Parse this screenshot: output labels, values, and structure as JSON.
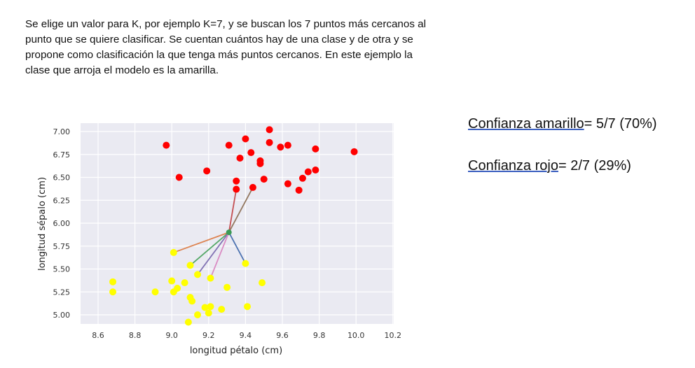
{
  "paragraph": {
    "lines": [
      "Se elige un valor para K, por ejemplo K=7, y se buscan los 7 puntos más cercanos al",
      "punto que se quiere clasificar. Se cuentan cuántos hay de una clase y de otra y se",
      "propone como clasificación la que tenga más puntos cercanos. En este ejemplo la",
      "clase que arroja el modelo es la amarilla."
    ]
  },
  "confidence": {
    "yellow": {
      "label": "Confianza amarillo",
      "value": "= 5/7 (70%)"
    },
    "red": {
      "label": "Confianza rojo",
      "value": "= 2/7 (29%)"
    }
  },
  "chart_data": {
    "type": "scatter",
    "xlabel": "longitud pétalo (cm)",
    "ylabel": "longitud sépalo (cm)",
    "xlim": [
      8.55,
      10.25
    ],
    "ylim": [
      4.9,
      7.05
    ],
    "xticks": [
      "8.6",
      "8.8",
      "9.0",
      "9.2",
      "9.4",
      "9.6",
      "9.8",
      "10.0",
      "10.2"
    ],
    "yticks": [
      "5.00",
      "5.25",
      "5.50",
      "5.75",
      "6.00",
      "6.25",
      "6.50",
      "6.75",
      "7.00"
    ],
    "grid": true,
    "colors": {
      "red": "#ff0000",
      "yellow": "#ffff00",
      "query": "#3a9a55",
      "background": "#eaeaf2"
    },
    "query_point": [
      9.31,
      5.9
    ],
    "series": [
      {
        "name": "rojo",
        "color": "#ff0000",
        "points": [
          [
            8.97,
            6.85
          ],
          [
            9.04,
            6.5
          ],
          [
            9.19,
            6.57
          ],
          [
            9.31,
            6.85
          ],
          [
            9.4,
            6.92
          ],
          [
            9.43,
            6.77
          ],
          [
            9.37,
            6.71
          ],
          [
            9.48,
            6.68
          ],
          [
            9.48,
            6.65
          ],
          [
            9.53,
            7.02
          ],
          [
            9.53,
            6.88
          ],
          [
            9.59,
            6.83
          ],
          [
            9.63,
            6.85
          ],
          [
            9.5,
            6.48
          ],
          [
            9.35,
            6.46
          ],
          [
            9.35,
            6.37
          ],
          [
            9.44,
            6.39
          ],
          [
            9.63,
            6.43
          ],
          [
            9.69,
            6.36
          ],
          [
            9.71,
            6.49
          ],
          [
            9.74,
            6.56
          ],
          [
            9.78,
            6.58
          ],
          [
            9.78,
            6.81
          ],
          [
            9.99,
            6.78
          ]
        ]
      },
      {
        "name": "amarillo",
        "color": "#ffff00",
        "points": [
          [
            9.01,
            5.68
          ],
          [
            9.1,
            5.54
          ],
          [
            9.14,
            5.44
          ],
          [
            9.21,
            5.4
          ],
          [
            9.4,
            5.56
          ],
          [
            8.68,
            5.36
          ],
          [
            8.68,
            5.25
          ],
          [
            8.91,
            5.25
          ],
          [
            9.0,
            5.37
          ],
          [
            9.01,
            5.25
          ],
          [
            9.03,
            5.29
          ],
          [
            9.07,
            5.35
          ],
          [
            9.3,
            5.3
          ],
          [
            9.49,
            5.35
          ],
          [
            9.1,
            5.19
          ],
          [
            9.11,
            5.15
          ],
          [
            9.18,
            5.08
          ],
          [
            9.21,
            5.09
          ],
          [
            9.2,
            5.02
          ],
          [
            9.14,
            5.0
          ],
          [
            9.27,
            5.06
          ],
          [
            9.41,
            5.09
          ],
          [
            9.09,
            4.92
          ]
        ]
      }
    ],
    "neighbors": [
      {
        "to": [
          9.01,
          5.68
        ],
        "color": "#dd8452"
      },
      {
        "to": [
          9.1,
          5.54
        ],
        "color": "#55a868"
      },
      {
        "to": [
          9.14,
          5.44
        ],
        "color": "#8172b3"
      },
      {
        "to": [
          9.21,
          5.4
        ],
        "color": "#da8bc3"
      },
      {
        "to": [
          9.4,
          5.56
        ],
        "color": "#4c72b0"
      },
      {
        "to": [
          9.35,
          6.37
        ],
        "color": "#c44e52"
      },
      {
        "to": [
          9.44,
          6.39
        ],
        "color": "#937860"
      }
    ]
  }
}
